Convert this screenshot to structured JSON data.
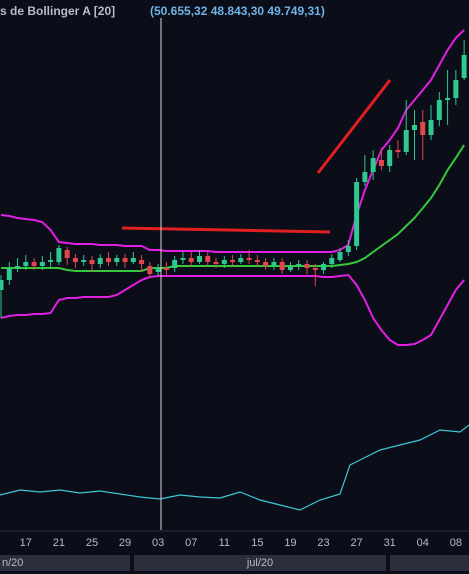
{
  "chart_data": {
    "type": "candlestick",
    "title": "s de Bollinger A [20]",
    "subtitle": "(50.655,32  48.843,30 49.749,31)",
    "categories": [
      null,
      null,
      null,
      "17",
      null,
      null,
      null,
      "21",
      null,
      null,
      null,
      "25",
      null,
      null,
      null,
      "29",
      null,
      null,
      null,
      "03",
      null,
      null,
      null,
      "07",
      null,
      null,
      null,
      "11",
      null,
      null,
      null,
      "15",
      null,
      null,
      null,
      "19",
      null,
      null,
      null,
      "23",
      null,
      null,
      null,
      "27",
      null,
      null,
      null,
      "31",
      null,
      null,
      null,
      "04",
      null,
      null,
      null,
      "08",
      null
    ],
    "month_labels": [
      "n/20",
      "jul/20"
    ],
    "ylim": [
      43000,
      62100
    ],
    "up_color": "#2fc88e",
    "down_color": "#e2474b",
    "open": [
      48500,
      49000,
      49600,
      49700,
      49900,
      49700,
      49900,
      49900,
      50500,
      50100,
      49900,
      50000,
      49800,
      50100,
      49900,
      50100,
      49900,
      50000,
      49700,
      49400,
      49600,
      49600,
      50000,
      50100,
      49900,
      50200,
      49900,
      49800,
      50000,
      49900,
      50100,
      50000,
      49900,
      49700,
      49900,
      49500,
      49700,
      49800,
      49600,
      49500,
      49800,
      50000,
      50400,
      50700,
      53900,
      54400,
      55000,
      54700,
      55500,
      55400,
      56500,
      56900,
      56250,
      57000,
      58000,
      58100,
      59100
    ],
    "high": [
      49250,
      49900,
      50100,
      50250,
      50100,
      50200,
      50400,
      50750,
      50650,
      50300,
      50250,
      50200,
      50300,
      50400,
      50250,
      50300,
      50400,
      50250,
      49900,
      49800,
      49900,
      50200,
      50400,
      50400,
      50500,
      50400,
      50100,
      50200,
      50250,
      50300,
      50500,
      50250,
      50100,
      50100,
      50100,
      49900,
      50000,
      50000,
      49800,
      49900,
      50300,
      50600,
      51000,
      54100,
      55250,
      55500,
      55600,
      55750,
      56000,
      58000,
      57500,
      57500,
      57750,
      58400,
      59500,
      59500,
      61000
    ],
    "low": [
      47100,
      48750,
      49400,
      49500,
      49500,
      49500,
      49600,
      49750,
      49750,
      49600,
      49700,
      49400,
      49600,
      49700,
      49700,
      49600,
      49800,
      49400,
      49100,
      49200,
      49250,
      49400,
      49800,
      49700,
      49800,
      49700,
      49600,
      49600,
      49700,
      49800,
      49800,
      49700,
      49500,
      49500,
      49300,
      49400,
      49500,
      49300,
      48700,
      49300,
      49600,
      49900,
      50200,
      50500,
      53700,
      54000,
      54500,
      54400,
      55100,
      55250,
      55000,
      55000,
      56000,
      56700,
      56750,
      57750,
      59000
    ],
    "close": [
      49000,
      49600,
      49700,
      49900,
      49700,
      49900,
      50000,
      50600,
      50100,
      49900,
      50000,
      49800,
      50100,
      49900,
      50100,
      49900,
      50100,
      49800,
      49300,
      49600,
      49500,
      50000,
      50100,
      49900,
      50200,
      49900,
      49800,
      50000,
      49900,
      50100,
      50000,
      49900,
      49700,
      49900,
      49500,
      49700,
      49800,
      49600,
      49500,
      49800,
      50100,
      50400,
      50700,
      53900,
      54400,
      55100,
      54700,
      55500,
      55400,
      56500,
      56750,
      56250,
      57000,
      58000,
      58100,
      59000,
      60250
    ],
    "series": [
      {
        "color": "#e31fe3",
        "values": [
          52250,
          52200,
          52100,
          52050,
          52000,
          51900,
          51500,
          50900,
          50850,
          50800,
          50800,
          50800,
          50750,
          50750,
          50750,
          50700,
          50700,
          50700,
          50500,
          50500,
          50450,
          50450,
          50450,
          50450,
          50450,
          50450,
          50400,
          50400,
          50400,
          50400,
          50400,
          50400,
          50400,
          50400,
          50400,
          50400,
          50400,
          50400,
          50400,
          50400,
          50400,
          50500,
          50750,
          52250,
          53500,
          54500,
          55500,
          56000,
          56600,
          57500,
          58000,
          58500,
          59000,
          59750,
          60500,
          61100,
          61500
        ]
      },
      {
        "color": "#36c83a",
        "values": [
          49600,
          49600,
          49600,
          49600,
          49600,
          49600,
          49600,
          49600,
          49500,
          49450,
          49450,
          49450,
          49450,
          49450,
          49450,
          49450,
          49450,
          49450,
          49600,
          49600,
          49600,
          49700,
          49700,
          49700,
          49700,
          49700,
          49700,
          49700,
          49700,
          49700,
          49700,
          49700,
          49700,
          49700,
          49700,
          49700,
          49700,
          49700,
          49700,
          49700,
          49700,
          49750,
          49800,
          49900,
          50100,
          50400,
          50700,
          51000,
          51300,
          51700,
          52100,
          52600,
          53100,
          53750,
          54500,
          55100,
          55750
        ]
      },
      {
        "color": "#e31fe3",
        "values": [
          47100,
          47200,
          47250,
          47250,
          47300,
          47300,
          47350,
          48000,
          48100,
          48100,
          48150,
          48150,
          48150,
          48150,
          48250,
          48500,
          48750,
          49000,
          49150,
          49200,
          49200,
          49200,
          49200,
          49200,
          49200,
          49200,
          49200,
          49200,
          49200,
          49200,
          49200,
          49200,
          49200,
          49200,
          49200,
          49200,
          49200,
          49200,
          49200,
          49150,
          49150,
          49200,
          49250,
          48750,
          48000,
          47100,
          46500,
          46000,
          45750,
          45750,
          45800,
          46000,
          46250,
          47000,
          47750,
          48500,
          49000
        ]
      }
    ]
  }
}
